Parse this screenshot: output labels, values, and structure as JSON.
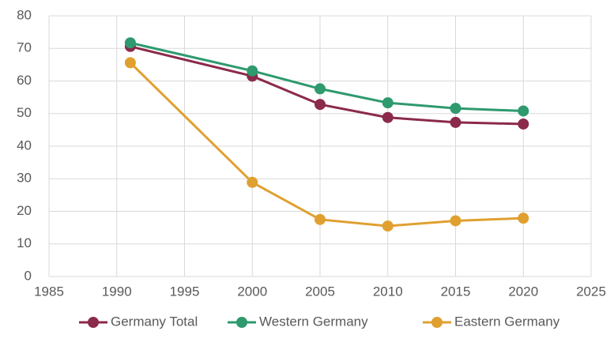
{
  "chart_data": {
    "type": "line",
    "x": [
      1991,
      2000,
      2005,
      2010,
      2015,
      2020
    ],
    "series": [
      {
        "name": "Germany Total",
        "color": "#8b2a4a",
        "values": [
          70.6,
          61.5,
          52.8,
          48.8,
          47.3,
          46.8
        ]
      },
      {
        "name": "Western Germany",
        "color": "#2e9a6e",
        "values": [
          71.7,
          63.1,
          57.6,
          53.3,
          51.6,
          50.8
        ]
      },
      {
        "name": "Eastern Germany",
        "color": "#e0a030",
        "values": [
          65.6,
          28.9,
          17.5,
          15.5,
          17.1,
          17.9
        ]
      }
    ],
    "xlim": [
      1985,
      2025
    ],
    "xticks": [
      1985,
      1990,
      1995,
      2000,
      2005,
      2010,
      2015,
      2020,
      2025
    ],
    "ylim": [
      0,
      80
    ],
    "yticks": [
      0,
      10,
      20,
      30,
      40,
      50,
      60,
      70,
      80
    ],
    "grid": true,
    "legend": "bottom"
  }
}
